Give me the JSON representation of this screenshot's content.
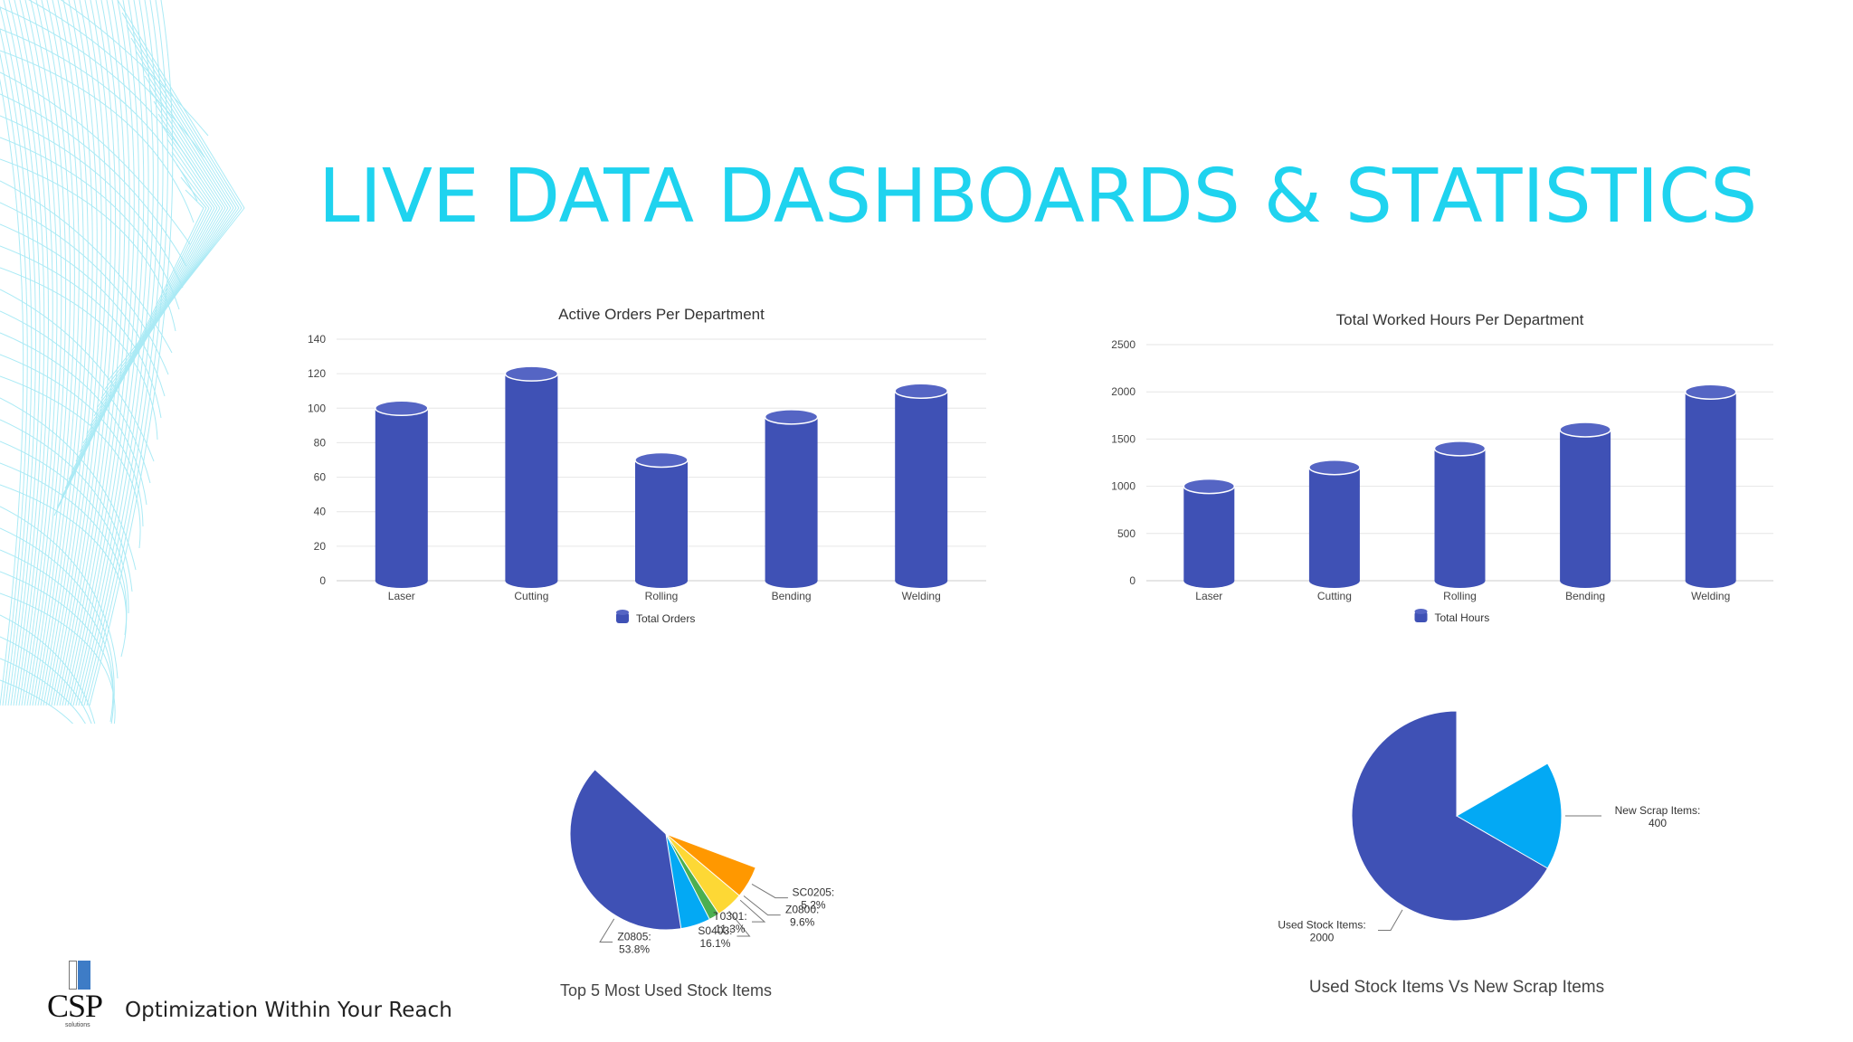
{
  "slide": {
    "title": "LIVE DATA DASHBOARDS & STATISTICS",
    "tagline": "Optimization Within Your Reach",
    "logo_text": "CSP",
    "logo_subtext": "solutions",
    "accent_color": "#1fd3ef",
    "series_color": "#3f51b5"
  },
  "chart_data": [
    {
      "type": "bar",
      "title": "Active Orders Per Department",
      "categories": [
        "Laser",
        "Cutting",
        "Rolling",
        "Bending",
        "Welding"
      ],
      "series": [
        {
          "name": "Total Orders",
          "values": [
            100,
            120,
            70,
            95,
            110
          ]
        }
      ],
      "ylim": [
        0,
        140
      ],
      "yticks": [
        "0",
        "20",
        "40",
        "60",
        "80",
        "100",
        "120",
        "140"
      ],
      "legend": "bottom",
      "grid": true
    },
    {
      "type": "bar",
      "title": "Total Worked Hours Per Department",
      "categories": [
        "Laser",
        "Cutting",
        "Rolling",
        "Bending",
        "Welding"
      ],
      "series": [
        {
          "name": "Total Hours",
          "values": [
            1000,
            1200,
            1400,
            1600,
            2000
          ]
        }
      ],
      "ylim": [
        0,
        2500
      ],
      "yticks": [
        "0",
        "500",
        "1000",
        "1500",
        "2000",
        "2500"
      ],
      "legend": "bottom",
      "grid": true
    },
    {
      "type": "pie",
      "title": "Top 5 Most Used Stock Items",
      "slices": [
        {
          "label": "Z0805:",
          "value": 53.8,
          "text": "53.8%",
          "color": "#3f51b5"
        },
        {
          "label": "S0403:",
          "value": 16.1,
          "text": "16.1%",
          "color": "#03a9f4"
        },
        {
          "label": "T0301:",
          "value": 11.3,
          "text": "11.3%",
          "color": "#4caf50"
        },
        {
          "label": "Z0800:",
          "value": 9.6,
          "text": "9.6%",
          "color": "#fdd835"
        },
        {
          "label": "SC0205:",
          "value": 5.2,
          "text": "5.2%",
          "color": "#ff9800"
        }
      ]
    },
    {
      "type": "pie",
      "title": "Used Stock Items Vs New Scrap Items",
      "slices": [
        {
          "label": "Used Stock Items:",
          "value": 2000,
          "text": "2000",
          "color": "#3f51b5"
        },
        {
          "label": "New Scrap Items:",
          "value": 400,
          "text": "400",
          "color": "#03a9f4"
        }
      ]
    }
  ]
}
